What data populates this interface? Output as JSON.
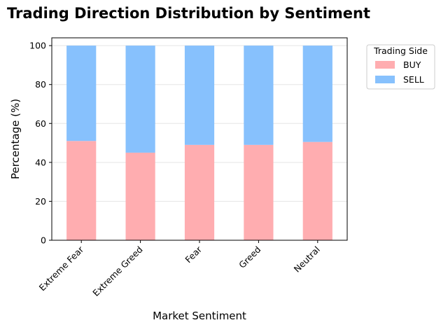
{
  "chart_data": {
    "type": "bar",
    "stacked": true,
    "title": "Trading Direction Distribution by Sentiment",
    "xlabel": "Market Sentiment",
    "ylabel": "Percentage (%)",
    "categories": [
      "Extreme Fear",
      "Extreme Greed",
      "Fear",
      "Greed",
      "Neutral"
    ],
    "series": [
      {
        "name": "BUY",
        "color": "#ffadb0",
        "values": [
          51,
          45,
          49,
          49,
          50.5
        ]
      },
      {
        "name": "SELL",
        "color": "#87c1fd",
        "values": [
          49,
          55,
          51,
          51,
          49.5
        ]
      }
    ],
    "ylim": [
      0,
      104
    ],
    "yticks": [
      0,
      20,
      40,
      60,
      80,
      100
    ],
    "grid": true,
    "legend": {
      "title": "Trading Side",
      "placement": "outside-top-right"
    }
  }
}
